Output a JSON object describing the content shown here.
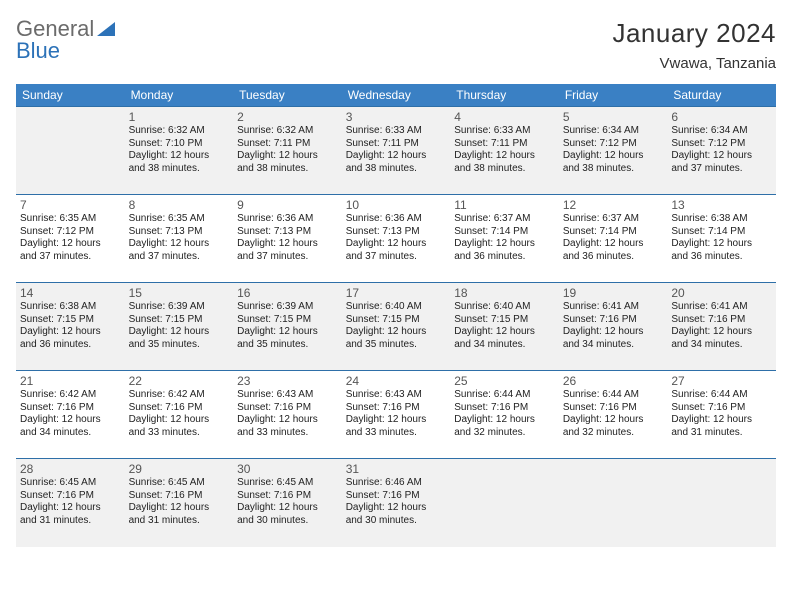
{
  "logo": {
    "word1": "General",
    "word2": "Blue"
  },
  "title": "January 2024",
  "location": "Vwawa, Tanzania",
  "colors": {
    "header_bg": "#3a80c4",
    "header_text": "#ffffff",
    "row_alt_bg": "#f1f1f1",
    "row_bg": "#ffffff",
    "border": "#2e6fa8",
    "logo_gray": "#6b6b6b",
    "logo_blue": "#2c72b8"
  },
  "weekdays": [
    "Sunday",
    "Monday",
    "Tuesday",
    "Wednesday",
    "Thursday",
    "Friday",
    "Saturday"
  ],
  "weeks": [
    [
      null,
      {
        "n": "1",
        "sr": "Sunrise: 6:32 AM",
        "ss": "Sunset: 7:10 PM",
        "d1": "Daylight: 12 hours",
        "d2": "and 38 minutes."
      },
      {
        "n": "2",
        "sr": "Sunrise: 6:32 AM",
        "ss": "Sunset: 7:11 PM",
        "d1": "Daylight: 12 hours",
        "d2": "and 38 minutes."
      },
      {
        "n": "3",
        "sr": "Sunrise: 6:33 AM",
        "ss": "Sunset: 7:11 PM",
        "d1": "Daylight: 12 hours",
        "d2": "and 38 minutes."
      },
      {
        "n": "4",
        "sr": "Sunrise: 6:33 AM",
        "ss": "Sunset: 7:11 PM",
        "d1": "Daylight: 12 hours",
        "d2": "and 38 minutes."
      },
      {
        "n": "5",
        "sr": "Sunrise: 6:34 AM",
        "ss": "Sunset: 7:12 PM",
        "d1": "Daylight: 12 hours",
        "d2": "and 38 minutes."
      },
      {
        "n": "6",
        "sr": "Sunrise: 6:34 AM",
        "ss": "Sunset: 7:12 PM",
        "d1": "Daylight: 12 hours",
        "d2": "and 37 minutes."
      }
    ],
    [
      {
        "n": "7",
        "sr": "Sunrise: 6:35 AM",
        "ss": "Sunset: 7:12 PM",
        "d1": "Daylight: 12 hours",
        "d2": "and 37 minutes."
      },
      {
        "n": "8",
        "sr": "Sunrise: 6:35 AM",
        "ss": "Sunset: 7:13 PM",
        "d1": "Daylight: 12 hours",
        "d2": "and 37 minutes."
      },
      {
        "n": "9",
        "sr": "Sunrise: 6:36 AM",
        "ss": "Sunset: 7:13 PM",
        "d1": "Daylight: 12 hours",
        "d2": "and 37 minutes."
      },
      {
        "n": "10",
        "sr": "Sunrise: 6:36 AM",
        "ss": "Sunset: 7:13 PM",
        "d1": "Daylight: 12 hours",
        "d2": "and 37 minutes."
      },
      {
        "n": "11",
        "sr": "Sunrise: 6:37 AM",
        "ss": "Sunset: 7:14 PM",
        "d1": "Daylight: 12 hours",
        "d2": "and 36 minutes."
      },
      {
        "n": "12",
        "sr": "Sunrise: 6:37 AM",
        "ss": "Sunset: 7:14 PM",
        "d1": "Daylight: 12 hours",
        "d2": "and 36 minutes."
      },
      {
        "n": "13",
        "sr": "Sunrise: 6:38 AM",
        "ss": "Sunset: 7:14 PM",
        "d1": "Daylight: 12 hours",
        "d2": "and 36 minutes."
      }
    ],
    [
      {
        "n": "14",
        "sr": "Sunrise: 6:38 AM",
        "ss": "Sunset: 7:15 PM",
        "d1": "Daylight: 12 hours",
        "d2": "and 36 minutes."
      },
      {
        "n": "15",
        "sr": "Sunrise: 6:39 AM",
        "ss": "Sunset: 7:15 PM",
        "d1": "Daylight: 12 hours",
        "d2": "and 35 minutes."
      },
      {
        "n": "16",
        "sr": "Sunrise: 6:39 AM",
        "ss": "Sunset: 7:15 PM",
        "d1": "Daylight: 12 hours",
        "d2": "and 35 minutes."
      },
      {
        "n": "17",
        "sr": "Sunrise: 6:40 AM",
        "ss": "Sunset: 7:15 PM",
        "d1": "Daylight: 12 hours",
        "d2": "and 35 minutes."
      },
      {
        "n": "18",
        "sr": "Sunrise: 6:40 AM",
        "ss": "Sunset: 7:15 PM",
        "d1": "Daylight: 12 hours",
        "d2": "and 34 minutes."
      },
      {
        "n": "19",
        "sr": "Sunrise: 6:41 AM",
        "ss": "Sunset: 7:16 PM",
        "d1": "Daylight: 12 hours",
        "d2": "and 34 minutes."
      },
      {
        "n": "20",
        "sr": "Sunrise: 6:41 AM",
        "ss": "Sunset: 7:16 PM",
        "d1": "Daylight: 12 hours",
        "d2": "and 34 minutes."
      }
    ],
    [
      {
        "n": "21",
        "sr": "Sunrise: 6:42 AM",
        "ss": "Sunset: 7:16 PM",
        "d1": "Daylight: 12 hours",
        "d2": "and 34 minutes."
      },
      {
        "n": "22",
        "sr": "Sunrise: 6:42 AM",
        "ss": "Sunset: 7:16 PM",
        "d1": "Daylight: 12 hours",
        "d2": "and 33 minutes."
      },
      {
        "n": "23",
        "sr": "Sunrise: 6:43 AM",
        "ss": "Sunset: 7:16 PM",
        "d1": "Daylight: 12 hours",
        "d2": "and 33 minutes."
      },
      {
        "n": "24",
        "sr": "Sunrise: 6:43 AM",
        "ss": "Sunset: 7:16 PM",
        "d1": "Daylight: 12 hours",
        "d2": "and 33 minutes."
      },
      {
        "n": "25",
        "sr": "Sunrise: 6:44 AM",
        "ss": "Sunset: 7:16 PM",
        "d1": "Daylight: 12 hours",
        "d2": "and 32 minutes."
      },
      {
        "n": "26",
        "sr": "Sunrise: 6:44 AM",
        "ss": "Sunset: 7:16 PM",
        "d1": "Daylight: 12 hours",
        "d2": "and 32 minutes."
      },
      {
        "n": "27",
        "sr": "Sunrise: 6:44 AM",
        "ss": "Sunset: 7:16 PM",
        "d1": "Daylight: 12 hours",
        "d2": "and 31 minutes."
      }
    ],
    [
      {
        "n": "28",
        "sr": "Sunrise: 6:45 AM",
        "ss": "Sunset: 7:16 PM",
        "d1": "Daylight: 12 hours",
        "d2": "and 31 minutes."
      },
      {
        "n": "29",
        "sr": "Sunrise: 6:45 AM",
        "ss": "Sunset: 7:16 PM",
        "d1": "Daylight: 12 hours",
        "d2": "and 31 minutes."
      },
      {
        "n": "30",
        "sr": "Sunrise: 6:45 AM",
        "ss": "Sunset: 7:16 PM",
        "d1": "Daylight: 12 hours",
        "d2": "and 30 minutes."
      },
      {
        "n": "31",
        "sr": "Sunrise: 6:46 AM",
        "ss": "Sunset: 7:16 PM",
        "d1": "Daylight: 12 hours",
        "d2": "and 30 minutes."
      },
      null,
      null,
      null
    ]
  ]
}
